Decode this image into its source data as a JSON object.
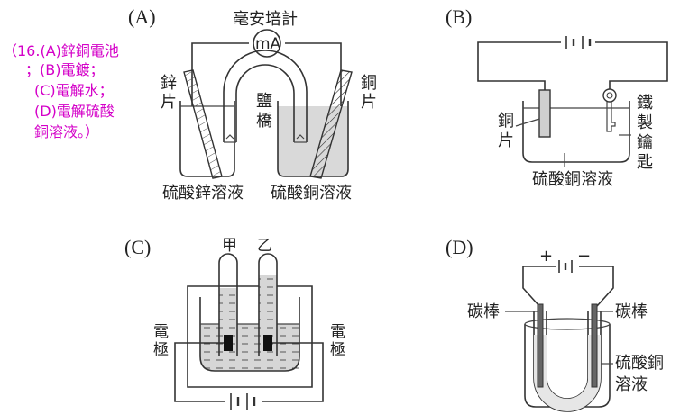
{
  "note": {
    "lines": [
      "（16.(A)鋅銅電池",
      "；(B)電鍍；",
      "(C)電解水；",
      "(D)電解硫酸",
      "銅溶液。）"
    ]
  },
  "panelA": {
    "label": "(A)",
    "title": "毫安培計",
    "meter": "mA",
    "left_electrode": [
      "鋅",
      "片"
    ],
    "right_electrode": [
      "銅",
      "片"
    ],
    "salt_bridge": [
      "鹽",
      "橋"
    ],
    "left_solution": "硫酸鋅溶液",
    "right_solution": "硫酸銅溶液"
  },
  "panelB": {
    "label": "(B)",
    "left_electrode": [
      "銅",
      "片"
    ],
    "right_electrode": [
      "鐵",
      "製",
      "鑰",
      "匙"
    ],
    "solution": "硫酸銅溶液"
  },
  "panelC": {
    "label": "(C)",
    "tube_left": "甲",
    "tube_right": "乙",
    "left_electrode": [
      "電",
      "極"
    ],
    "right_electrode": [
      "電",
      "極"
    ]
  },
  "panelD": {
    "label": "(D)",
    "plus": "+",
    "minus": "−",
    "left_rod": "碳棒",
    "right_rod": "碳棒",
    "solution": [
      "硫酸銅",
      "溶液"
    ]
  }
}
